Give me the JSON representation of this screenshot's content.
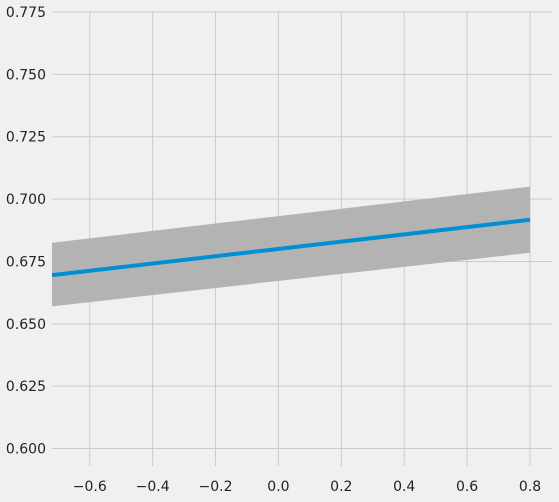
{
  "chart_data": {
    "type": "line",
    "title": "",
    "xlabel": "",
    "ylabel": "",
    "xlim": [
      -0.72,
      0.87
    ],
    "ylim": [
      0.593,
      0.775
    ],
    "x_ticks": [
      -0.6,
      -0.4,
      -0.2,
      0.0,
      0.2,
      0.4,
      0.6,
      0.8
    ],
    "x_tick_labels": [
      "−0.6",
      "−0.4",
      "−0.2",
      "0.0",
      "0.2",
      "0.4",
      "0.6",
      "0.8"
    ],
    "y_ticks": [
      0.6,
      0.625,
      0.65,
      0.675,
      0.7,
      0.725,
      0.75,
      0.775
    ],
    "y_tick_labels": [
      "0.600",
      "0.625",
      "0.650",
      "0.675",
      "0.700",
      "0.725",
      "0.750",
      "0.775"
    ],
    "grid": true,
    "series": [
      {
        "x": [
          -0.72,
          0.8
        ],
        "y": [
          0.6695,
          0.6917
        ],
        "lower": [
          0.657,
          0.6785
        ],
        "upper": [
          0.6825,
          0.705
        ]
      }
    ],
    "colors": {
      "background": "#f0f0f0",
      "grid": "#cbcbcb",
      "line": "#008fd5",
      "band": "#b3b3b3"
    }
  }
}
